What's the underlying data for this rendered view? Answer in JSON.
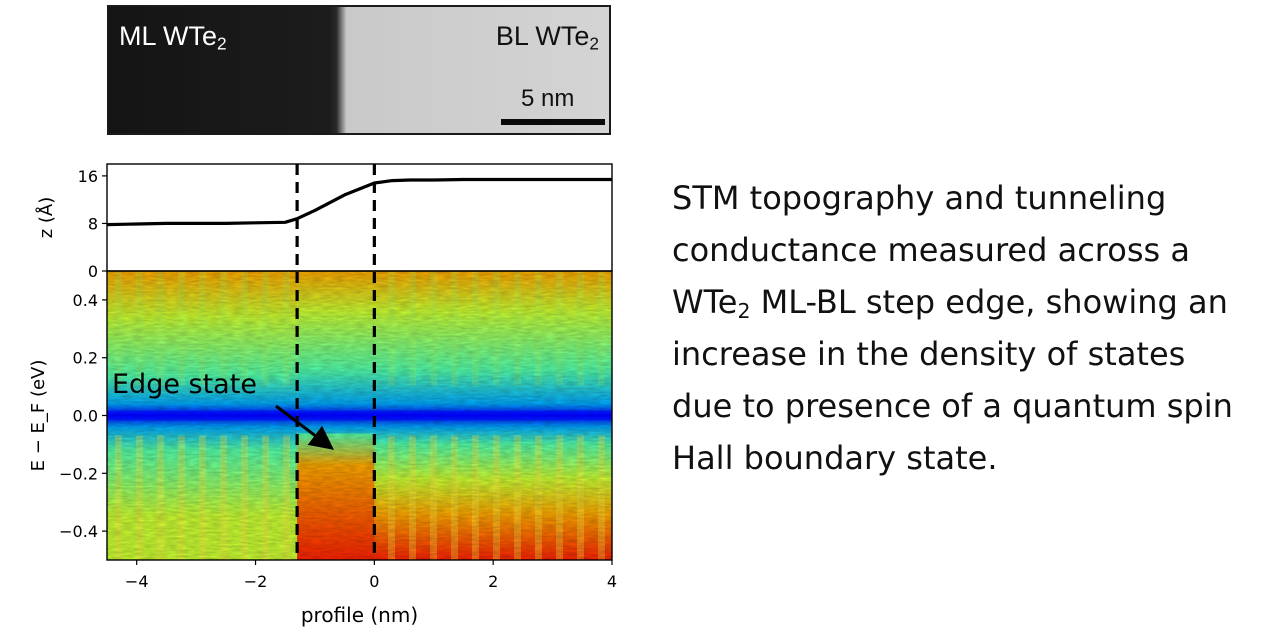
{
  "stm_image": {
    "left_label": {
      "main": "ML WTe",
      "sub": "2"
    },
    "right_label": {
      "main": "BL WTe",
      "sub": "2"
    },
    "scale_bar_label": "5 nm"
  },
  "caption": {
    "lines": [
      {
        "text": "STM topography and tunneling"
      },
      {
        "text": "conductance measured across a"
      },
      {
        "text": "WTe",
        "sub": "2",
        "after": " ML-BL step edge, showing an"
      },
      {
        "text": "increase in the density of states"
      },
      {
        "text": "due to presence of a quantum spin"
      },
      {
        "text": "Hall boundary state."
      }
    ]
  },
  "colors": {
    "colormap": [
      "#0000ff",
      "#00aaff",
      "#55ffaa",
      "#ccff33",
      "#ffaa00",
      "#ff2200"
    ],
    "step_line": "#000000",
    "profile_line": "#000000"
  },
  "chart_data": [
    {
      "type": "line",
      "ylabel": "z (Å)",
      "xlim": [
        -4.5,
        4
      ],
      "ylim": [
        0,
        18
      ],
      "yticks": [
        "0",
        "8",
        "16"
      ],
      "x": [
        -4.5,
        -4,
        -3.5,
        -3,
        -2.5,
        -2,
        -1.5,
        -1.3,
        -1,
        -0.5,
        0,
        0.3,
        0.6,
        1,
        1.5,
        2,
        2.5,
        3,
        3.5,
        4
      ],
      "series": [
        {
          "values": [
            7.8,
            7.9,
            8.0,
            8.0,
            8.0,
            8.1,
            8.2,
            8.8,
            10.2,
            12.8,
            14.8,
            15.2,
            15.3,
            15.3,
            15.4,
            15.4,
            15.4,
            15.4,
            15.4,
            15.4
          ]
        }
      ],
      "vlines": [
        -1.3,
        0
      ]
    },
    {
      "type": "heatmap",
      "xlabel": "profile (nm)",
      "ylabel": "E − E_F (eV)",
      "xlim": [
        -4.5,
        4
      ],
      "ylim": [
        -0.5,
        0.5
      ],
      "xticks": [
        "−4",
        "−2",
        "0",
        "2",
        "4"
      ],
      "yticks": [
        "−0.4",
        "−0.2",
        "0.0",
        "0.2",
        "0.4"
      ],
      "low_dos_band_energy": 0.0,
      "vlines": [
        -1.3,
        0
      ],
      "annotation": {
        "text": "Edge state",
        "arrow_to": [
          -0.8,
          -0.1
        ]
      }
    }
  ]
}
